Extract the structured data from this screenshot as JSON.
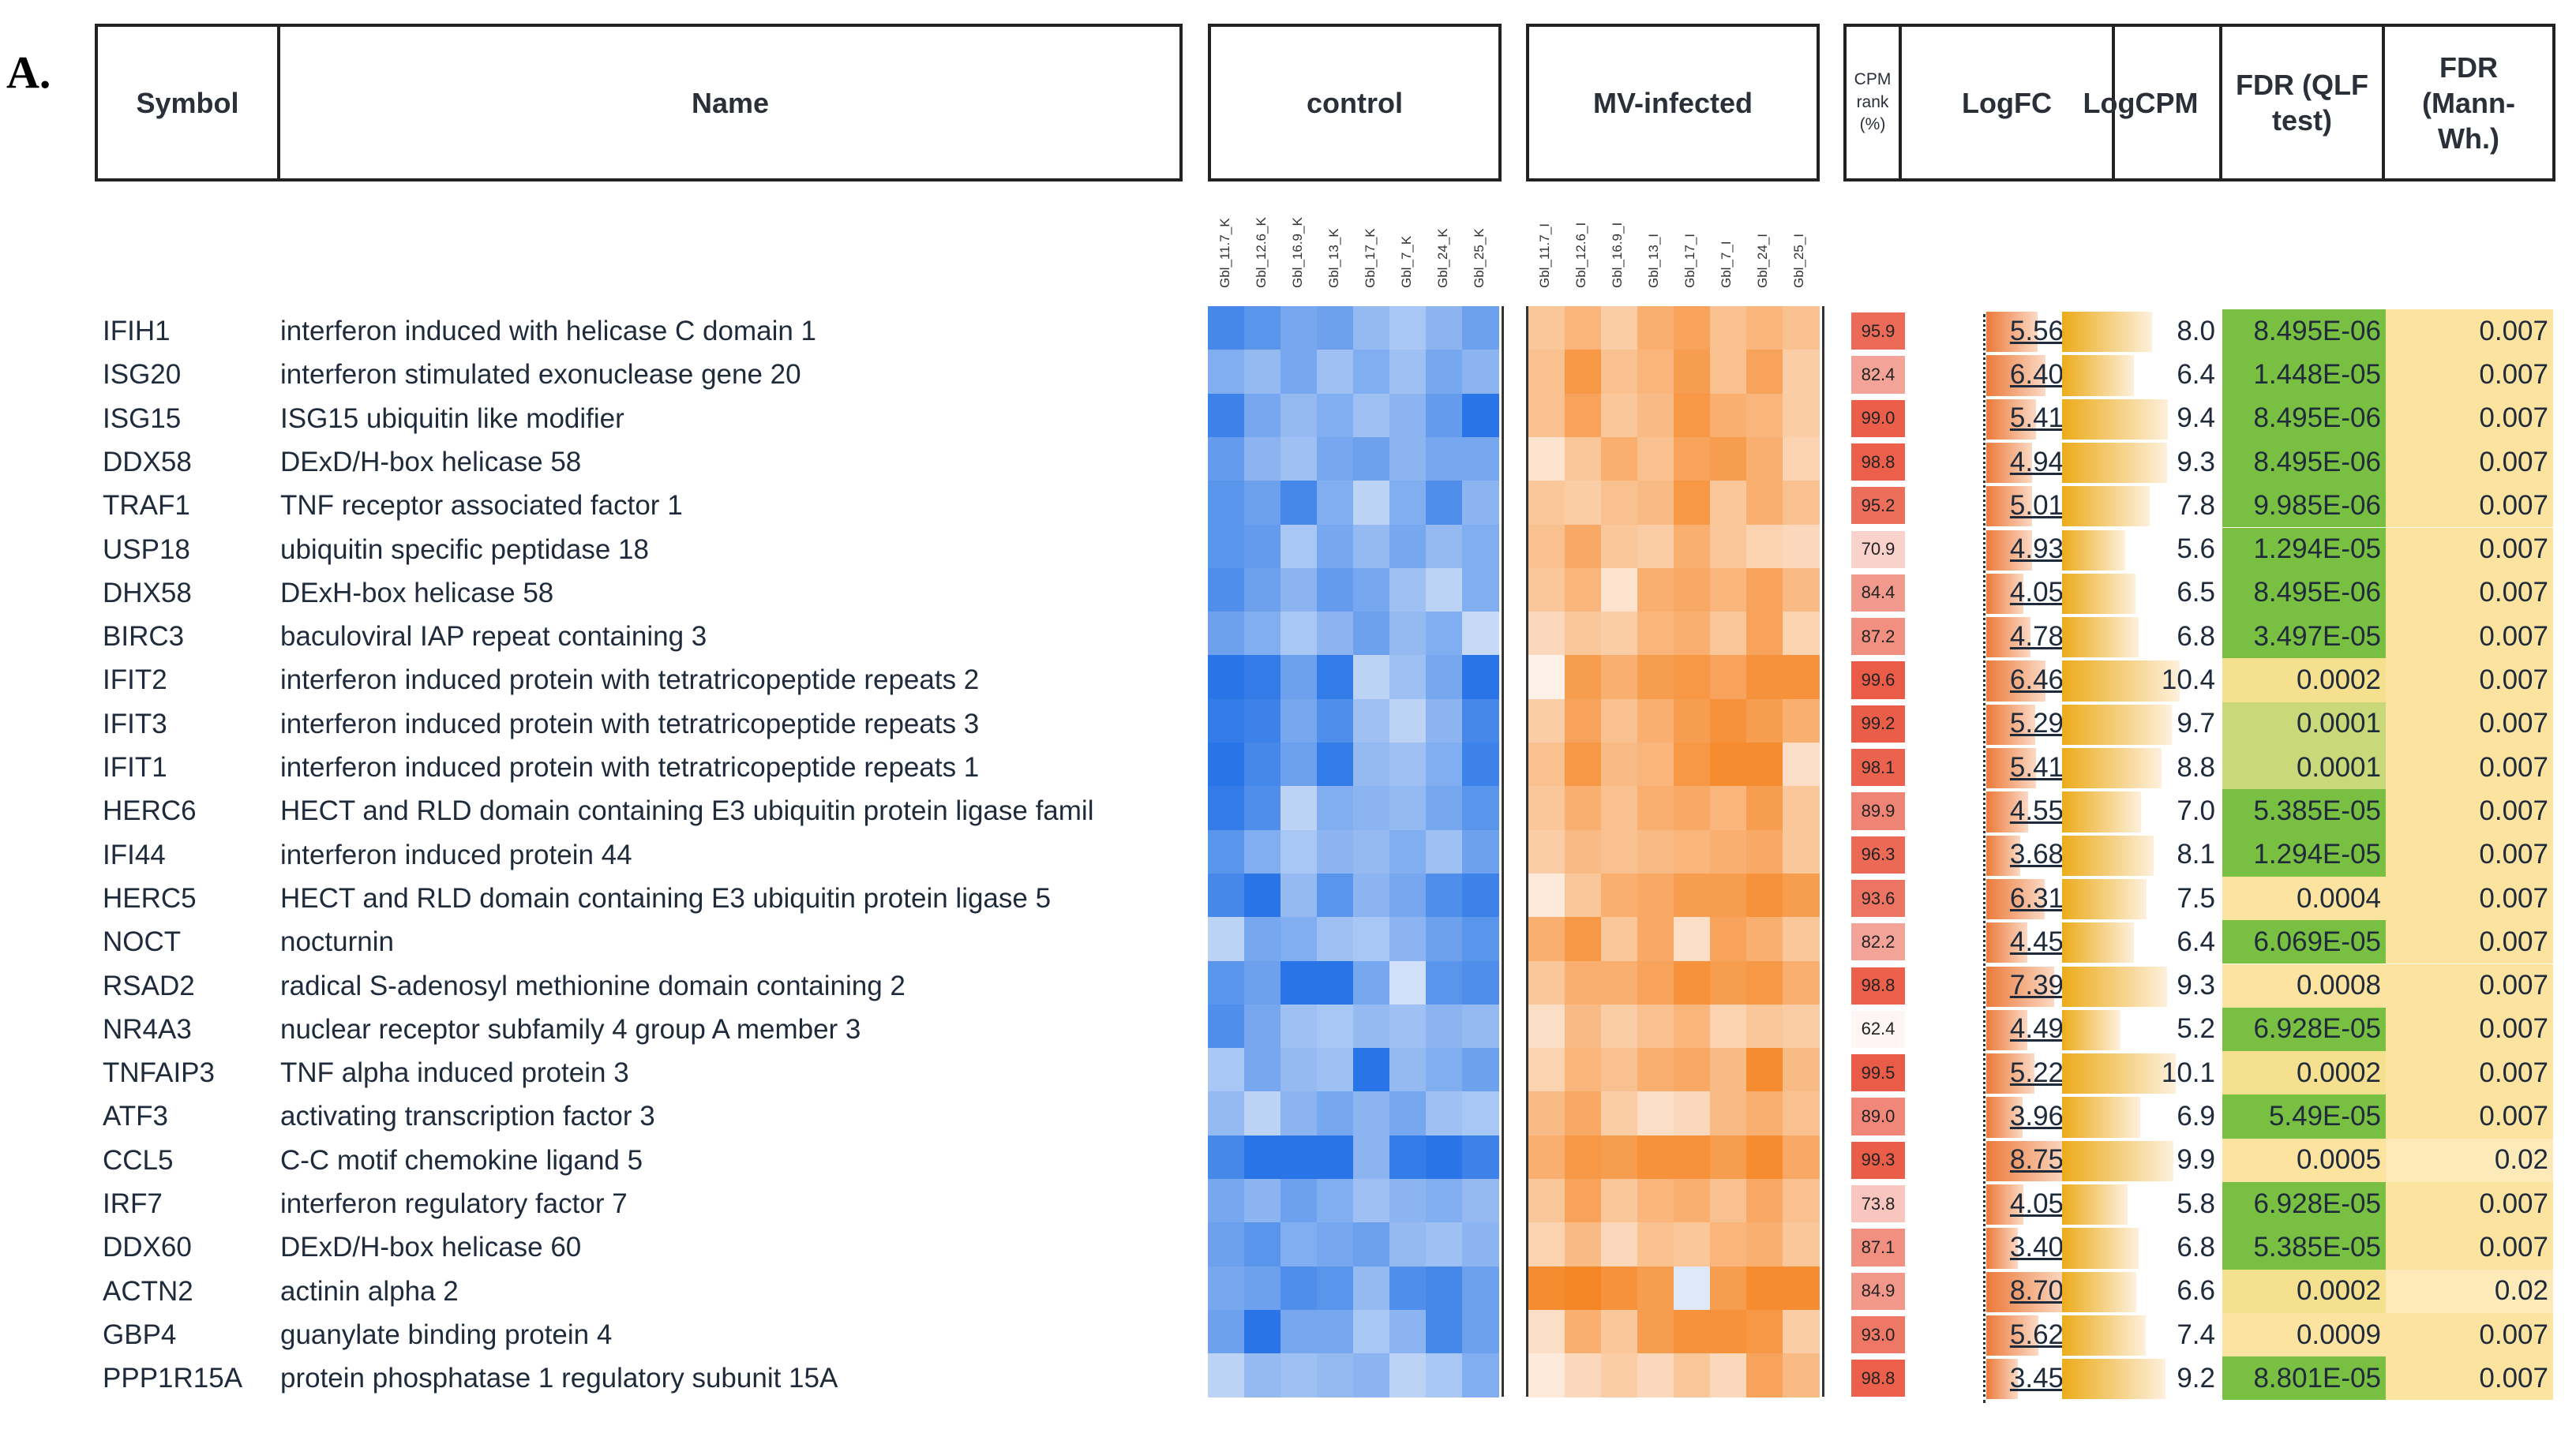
{
  "panel_label": "A.",
  "headers": {
    "symbol": "Symbol",
    "name": "Name",
    "control": "control",
    "mv_infected": "MV-infected",
    "cpm_rank": [
      "CPM",
      "rank",
      "(%)"
    ],
    "logfc": "LogFC",
    "logcpm": "LogCPM",
    "fdr_qlf": [
      "FDR (QLF",
      "test)"
    ],
    "fdr_mw": [
      "FDR",
      "(Mann-",
      "Wh.)"
    ]
  },
  "samples": {
    "control": [
      "Gbl_11.7_K",
      "Gbl_12.6_K",
      "Gbl_16.9_K",
      "Gbl_13_K",
      "Gbl_17_K",
      "Gbl_7_K",
      "Gbl_24_K",
      "Gbl_25_K"
    ],
    "infected": [
      "Gbl_11.7_I",
      "Gbl_12.6_I",
      "Gbl_16.9_I",
      "Gbl_13_I",
      "Gbl_17_I",
      "Gbl_7_I",
      "Gbl_24_I",
      "Gbl_25_I"
    ]
  },
  "colors": {
    "control_hi": "#1f6fe6",
    "control_lo": "#e3ecfa",
    "infected_hi": "#f47a10",
    "infected_lo": "#fdf0e6",
    "cpm_hi": "#ea5a45",
    "logfc_bar": "#ec7a3a",
    "logcpm_bar": "#ecab1a",
    "fdr_green": "#79c042",
    "fdr_yellow": "#fde3a0"
  },
  "chart_data": {
    "type": "table",
    "columns": [
      "Symbol",
      "Name",
      "CPM rank (%)",
      "LogFC",
      "LogCPM",
      "FDR (QLF test)",
      "FDR (Mann-Wh.)"
    ],
    "rows": [
      {
        "symbol": "IFIH1",
        "name": "interferon induced with helicase C domain 1",
        "cpm": "95.9",
        "logfc": "5.56",
        "logcpm": "8.0",
        "fdr_qlf": "8.495E-06",
        "fdr_mw": "0.007"
      },
      {
        "symbol": "ISG20",
        "name": "interferon stimulated exonuclease gene 20",
        "cpm": "82.4",
        "logfc": "6.40",
        "logcpm": "6.4",
        "fdr_qlf": "1.448E-05",
        "fdr_mw": "0.007"
      },
      {
        "symbol": "ISG15",
        "name": "ISG15 ubiquitin like modifier",
        "cpm": "99.0",
        "logfc": "5.41",
        "logcpm": "9.4",
        "fdr_qlf": "8.495E-06",
        "fdr_mw": "0.007"
      },
      {
        "symbol": "DDX58",
        "name": "DExD/H-box helicase 58",
        "cpm": "98.8",
        "logfc": "4.94",
        "logcpm": "9.3",
        "fdr_qlf": "8.495E-06",
        "fdr_mw": "0.007"
      },
      {
        "symbol": "TRAF1",
        "name": "TNF receptor associated factor 1",
        "cpm": "95.2",
        "logfc": "5.01",
        "logcpm": "7.8",
        "fdr_qlf": "9.985E-06",
        "fdr_mw": "0.007"
      },
      {
        "symbol": "USP18",
        "name": "ubiquitin specific peptidase 18",
        "cpm": "70.9",
        "logfc": "4.93",
        "logcpm": "5.6",
        "fdr_qlf": "1.294E-05",
        "fdr_mw": "0.007"
      },
      {
        "symbol": "DHX58",
        "name": "DExH-box helicase 58",
        "cpm": "84.4",
        "logfc": "4.05",
        "logcpm": "6.5",
        "fdr_qlf": "8.495E-06",
        "fdr_mw": "0.007"
      },
      {
        "symbol": "BIRC3",
        "name": "baculoviral IAP repeat containing 3",
        "cpm": "87.2",
        "logfc": "4.78",
        "logcpm": "6.8",
        "fdr_qlf": "3.497E-05",
        "fdr_mw": "0.007"
      },
      {
        "symbol": "IFIT2",
        "name": "interferon induced protein with tetratricopeptide repeats 2",
        "cpm": "99.6",
        "logfc": "6.46",
        "logcpm": "10.4",
        "fdr_qlf": "0.0002",
        "fdr_mw": "0.007"
      },
      {
        "symbol": "IFIT3",
        "name": "interferon induced protein with tetratricopeptide repeats 3",
        "cpm": "99.2",
        "logfc": "5.29",
        "logcpm": "9.7",
        "fdr_qlf": "0.0001",
        "fdr_mw": "0.007"
      },
      {
        "symbol": "IFIT1",
        "name": "interferon induced protein with tetratricopeptide repeats 1",
        "cpm": "98.1",
        "logfc": "5.41",
        "logcpm": "8.8",
        "fdr_qlf": "0.0001",
        "fdr_mw": "0.007"
      },
      {
        "symbol": "HERC6",
        "name": "HECT and RLD domain containing E3 ubiquitin protein ligase famil",
        "cpm": "89.9",
        "logfc": "4.55",
        "logcpm": "7.0",
        "fdr_qlf": "5.385E-05",
        "fdr_mw": "0.007"
      },
      {
        "symbol": "IFI44",
        "name": "interferon induced protein 44",
        "cpm": "96.3",
        "logfc": "3.68",
        "logcpm": "8.1",
        "fdr_qlf": "1.294E-05",
        "fdr_mw": "0.007"
      },
      {
        "symbol": "HERC5",
        "name": "HECT and RLD domain containing E3 ubiquitin protein ligase 5",
        "cpm": "93.6",
        "logfc": "6.31",
        "logcpm": "7.5",
        "fdr_qlf": "0.0004",
        "fdr_mw": "0.007"
      },
      {
        "symbol": "NOCT",
        "name": "nocturnin",
        "cpm": "82.2",
        "logfc": "4.45",
        "logcpm": "6.4",
        "fdr_qlf": "6.069E-05",
        "fdr_mw": "0.007"
      },
      {
        "symbol": "RSAD2",
        "name": "radical S-adenosyl methionine domain containing 2",
        "cpm": "98.8",
        "logfc": "7.39",
        "logcpm": "9.3",
        "fdr_qlf": "0.0008",
        "fdr_mw": "0.007"
      },
      {
        "symbol": "NR4A3",
        "name": "nuclear receptor subfamily 4 group A member 3",
        "cpm": "62.4",
        "logfc": "4.49",
        "logcpm": "5.2",
        "fdr_qlf": "6.928E-05",
        "fdr_mw": "0.007"
      },
      {
        "symbol": "TNFAIP3",
        "name": "TNF alpha induced protein 3",
        "cpm": "99.5",
        "logfc": "5.22",
        "logcpm": "10.1",
        "fdr_qlf": "0.0002",
        "fdr_mw": "0.007"
      },
      {
        "symbol": "ATF3",
        "name": "activating transcription factor 3",
        "cpm": "89.0",
        "logfc": "3.96",
        "logcpm": "6.9",
        "fdr_qlf": "5.49E-05",
        "fdr_mw": "0.007"
      },
      {
        "symbol": "CCL5",
        "name": "C-C motif chemokine ligand 5",
        "cpm": "99.3",
        "logfc": "8.75",
        "logcpm": "9.9",
        "fdr_qlf": "0.0005",
        "fdr_mw": "0.02"
      },
      {
        "symbol": "IRF7",
        "name": "interferon regulatory factor 7",
        "cpm": "73.8",
        "logfc": "4.05",
        "logcpm": "5.8",
        "fdr_qlf": "6.928E-05",
        "fdr_mw": "0.007"
      },
      {
        "symbol": "DDX60",
        "name": "DExD/H-box helicase 60",
        "cpm": "87.1",
        "logfc": "3.40",
        "logcpm": "6.8",
        "fdr_qlf": "5.385E-05",
        "fdr_mw": "0.007"
      },
      {
        "symbol": "ACTN2",
        "name": "actinin alpha 2",
        "cpm": "84.9",
        "logfc": "8.70",
        "logcpm": "6.6",
        "fdr_qlf": "0.0002",
        "fdr_mw": "0.02"
      },
      {
        "symbol": "GBP4",
        "name": "guanylate binding protein 4",
        "cpm": "93.0",
        "logfc": "5.62",
        "logcpm": "7.4",
        "fdr_qlf": "0.0009",
        "fdr_mw": "0.007"
      },
      {
        "symbol": "PPP1R15A",
        "name": "protein phosphatase 1 regulatory subunit 15A",
        "cpm": "98.8",
        "logfc": "3.45",
        "logcpm": "9.2",
        "fdr_qlf": "8.801E-05",
        "fdr_mw": "0.007"
      }
    ],
    "heatmap_control": [
      [
        0.8,
        0.7,
        0.55,
        0.6,
        0.4,
        0.3,
        0.45,
        0.6
      ],
      [
        0.5,
        0.4,
        0.55,
        0.35,
        0.5,
        0.35,
        0.55,
        0.45
      ],
      [
        0.85,
        0.55,
        0.4,
        0.5,
        0.35,
        0.45,
        0.65,
        0.95
      ],
      [
        0.65,
        0.45,
        0.35,
        0.55,
        0.6,
        0.45,
        0.55,
        0.55
      ],
      [
        0.7,
        0.6,
        0.8,
        0.5,
        0.2,
        0.5,
        0.75,
        0.45
      ],
      [
        0.7,
        0.65,
        0.3,
        0.55,
        0.4,
        0.55,
        0.4,
        0.5
      ],
      [
        0.75,
        0.6,
        0.45,
        0.65,
        0.55,
        0.35,
        0.2,
        0.5
      ],
      [
        0.6,
        0.5,
        0.3,
        0.45,
        0.6,
        0.4,
        0.5,
        0.15
      ],
      [
        0.95,
        0.9,
        0.6,
        0.9,
        0.2,
        0.35,
        0.55,
        0.95
      ],
      [
        0.9,
        0.85,
        0.55,
        0.75,
        0.35,
        0.2,
        0.45,
        0.8
      ],
      [
        0.95,
        0.8,
        0.6,
        0.9,
        0.4,
        0.35,
        0.5,
        0.85
      ],
      [
        0.9,
        0.75,
        0.2,
        0.5,
        0.45,
        0.4,
        0.55,
        0.7
      ],
      [
        0.7,
        0.5,
        0.3,
        0.45,
        0.4,
        0.5,
        0.35,
        0.6
      ],
      [
        0.8,
        0.95,
        0.4,
        0.7,
        0.45,
        0.55,
        0.75,
        0.85
      ],
      [
        0.2,
        0.55,
        0.5,
        0.35,
        0.3,
        0.45,
        0.6,
        0.7
      ],
      [
        0.7,
        0.6,
        0.95,
        0.95,
        0.55,
        0.1,
        0.7,
        0.75
      ],
      [
        0.75,
        0.55,
        0.35,
        0.3,
        0.4,
        0.35,
        0.45,
        0.4
      ],
      [
        0.3,
        0.55,
        0.4,
        0.35,
        0.95,
        0.4,
        0.5,
        0.6
      ],
      [
        0.4,
        0.2,
        0.45,
        0.55,
        0.45,
        0.55,
        0.35,
        0.3
      ],
      [
        0.8,
        0.95,
        0.95,
        0.95,
        0.45,
        0.9,
        0.95,
        0.85
      ],
      [
        0.55,
        0.45,
        0.6,
        0.5,
        0.35,
        0.45,
        0.5,
        0.4
      ],
      [
        0.6,
        0.7,
        0.5,
        0.55,
        0.6,
        0.4,
        0.35,
        0.45
      ],
      [
        0.55,
        0.6,
        0.75,
        0.7,
        0.4,
        0.75,
        0.8,
        0.6
      ],
      [
        0.6,
        0.95,
        0.55,
        0.55,
        0.3,
        0.45,
        0.8,
        0.6
      ],
      [
        0.2,
        0.4,
        0.35,
        0.4,
        0.45,
        0.2,
        0.3,
        0.5
      ]
    ],
    "heatmap_infected": [
      [
        0.35,
        0.5,
        0.3,
        0.55,
        0.65,
        0.4,
        0.5,
        0.4
      ],
      [
        0.4,
        0.75,
        0.4,
        0.5,
        0.7,
        0.4,
        0.65,
        0.3
      ],
      [
        0.4,
        0.65,
        0.35,
        0.45,
        0.75,
        0.55,
        0.5,
        0.3
      ],
      [
        0.1,
        0.35,
        0.55,
        0.4,
        0.65,
        0.7,
        0.55,
        0.25
      ],
      [
        0.35,
        0.3,
        0.4,
        0.45,
        0.75,
        0.35,
        0.55,
        0.4
      ],
      [
        0.4,
        0.6,
        0.35,
        0.3,
        0.55,
        0.35,
        0.25,
        0.2
      ],
      [
        0.35,
        0.5,
        0.1,
        0.55,
        0.6,
        0.5,
        0.65,
        0.45
      ],
      [
        0.2,
        0.35,
        0.3,
        0.5,
        0.55,
        0.35,
        0.65,
        0.25
      ],
      [
        0.0,
        0.7,
        0.55,
        0.7,
        0.75,
        0.65,
        0.8,
        0.8
      ],
      [
        0.3,
        0.65,
        0.4,
        0.55,
        0.7,
        0.8,
        0.7,
        0.55
      ],
      [
        0.4,
        0.75,
        0.45,
        0.5,
        0.75,
        0.85,
        0.85,
        0.15
      ],
      [
        0.35,
        0.55,
        0.4,
        0.55,
        0.6,
        0.5,
        0.7,
        0.35
      ],
      [
        0.3,
        0.45,
        0.4,
        0.45,
        0.5,
        0.55,
        0.6,
        0.35
      ],
      [
        0.05,
        0.35,
        0.55,
        0.6,
        0.7,
        0.7,
        0.8,
        0.7
      ],
      [
        0.55,
        0.75,
        0.35,
        0.6,
        0.15,
        0.65,
        0.55,
        0.35
      ],
      [
        0.35,
        0.55,
        0.55,
        0.65,
        0.8,
        0.7,
        0.75,
        0.55
      ],
      [
        0.15,
        0.45,
        0.3,
        0.4,
        0.5,
        0.25,
        0.35,
        0.3
      ],
      [
        0.25,
        0.5,
        0.4,
        0.55,
        0.6,
        0.45,
        0.85,
        0.45
      ],
      [
        0.45,
        0.6,
        0.3,
        0.15,
        0.2,
        0.45,
        0.55,
        0.4
      ],
      [
        0.55,
        0.75,
        0.7,
        0.8,
        0.8,
        0.7,
        0.85,
        0.6
      ],
      [
        0.35,
        0.65,
        0.35,
        0.5,
        0.55,
        0.4,
        0.6,
        0.4
      ],
      [
        0.25,
        0.45,
        0.2,
        0.4,
        0.35,
        0.5,
        0.55,
        0.35
      ],
      [
        0.85,
        0.9,
        0.8,
        0.7,
        -1,
        0.7,
        0.85,
        0.85
      ],
      [
        0.15,
        0.55,
        0.35,
        0.7,
        0.8,
        0.8,
        0.75,
        0.3
      ],
      [
        0.05,
        0.2,
        0.3,
        0.2,
        0.35,
        0.2,
        0.65,
        0.45
      ]
    ]
  }
}
